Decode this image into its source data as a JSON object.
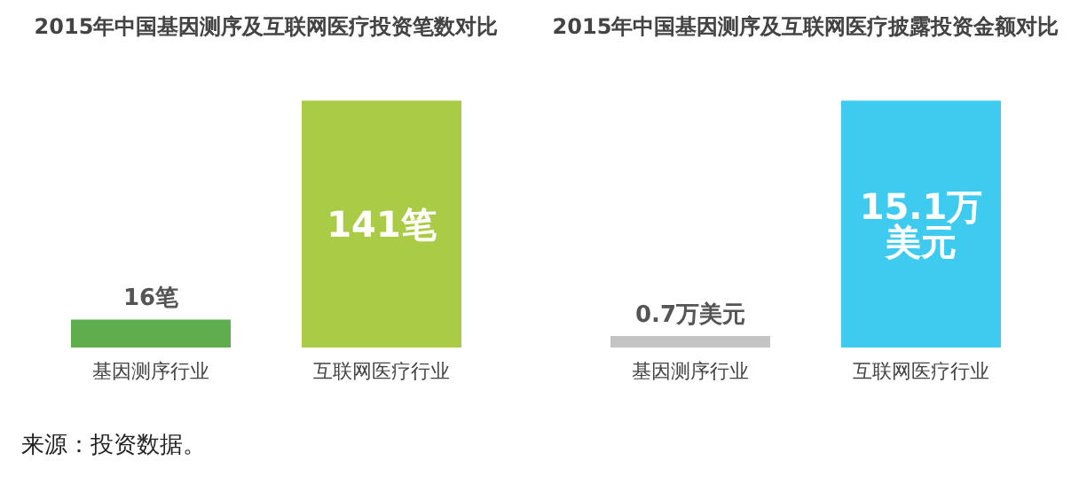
{
  "chart_data": [
    {
      "type": "bar",
      "title": "2015年中国基因测序及互联网医疗投资笔数对比",
      "categories": [
        "基因测序行业",
        "互联网医疗行业"
      ],
      "values": [
        16,
        141
      ],
      "colors": [
        "#5fae4e",
        "#a9cb45"
      ],
      "value_labels": [
        "16笔",
        "141笔"
      ],
      "annotations": [
        "来源：投资数据。"
      ]
    },
    {
      "type": "bar",
      "title": "2015年中国基因测序及互联网医疗披露投资金额对比",
      "categories": [
        "基因测序行业",
        "互联网医疗行业"
      ],
      "values": [
        0.7,
        15.1
      ],
      "colors": [
        "#c4c4c4",
        "#3fcbef"
      ],
      "value_labels": [
        "0.7万美元",
        "15.1万美元"
      ]
    }
  ]
}
